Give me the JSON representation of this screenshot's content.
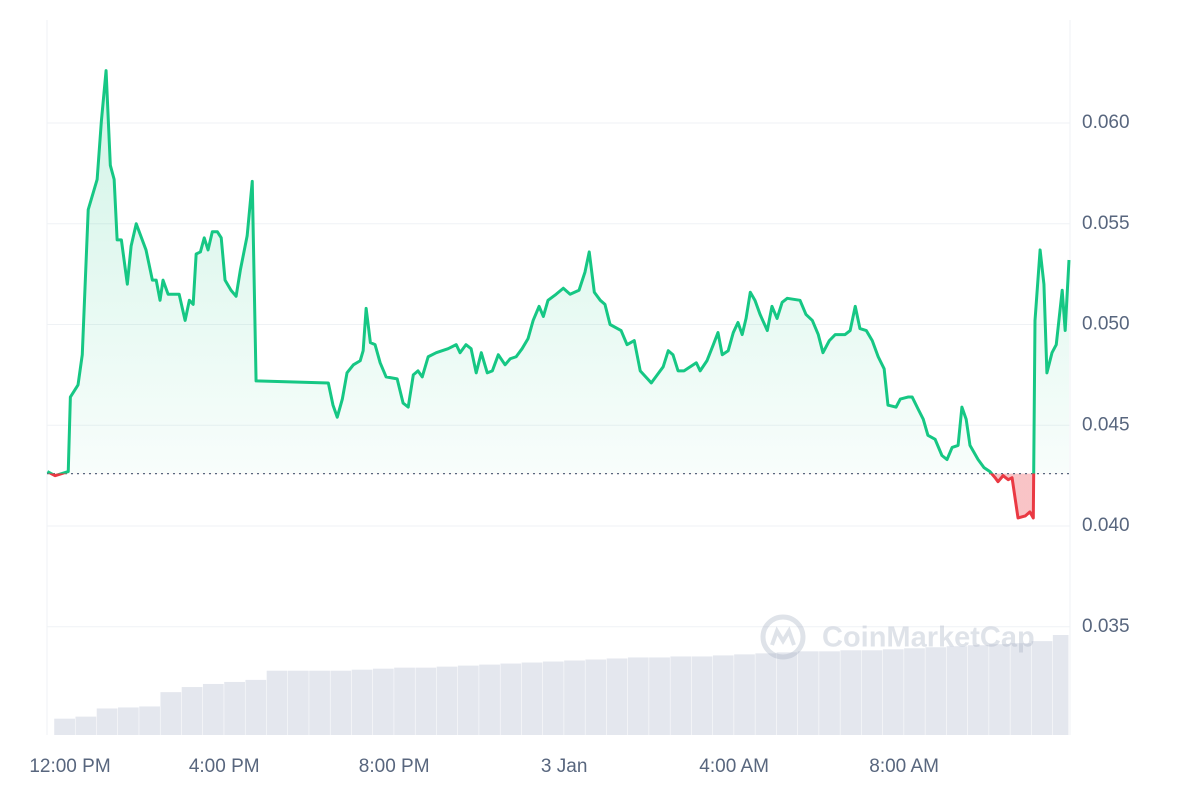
{
  "chart_data": {
    "type": "line",
    "x": [
      -0.16,
      0.02,
      0.33,
      0.38,
      0.56,
      0.66,
      0.8,
      1.01,
      1.11,
      1.22,
      1.32,
      1.41,
      1.48,
      1.58,
      1.72,
      1.81,
      1.93,
      2.16,
      2.31,
      2.4,
      2.49,
      2.56,
      2.68,
      2.94,
      3.08,
      3.18,
      3.27,
      3.34,
      3.44,
      3.53,
      3.62,
      3.72,
      3.84,
      3.93,
      4.02,
      4.16,
      4.28,
      4.38,
      4.54,
      4.66,
      4.75,
      6.45,
      6.56,
      6.66,
      6.78,
      6.89,
      7.04,
      7.2,
      7.27,
      7.34,
      7.44,
      7.55,
      7.67,
      7.81,
      8.07,
      8.21,
      8.33,
      8.45,
      8.56,
      8.66,
      8.8,
      8.99,
      9.27,
      9.46,
      9.55,
      9.69,
      9.81,
      9.93,
      10.05,
      10.19,
      10.31,
      10.45,
      10.61,
      10.73,
      10.87,
      11.01,
      11.15,
      11.27,
      11.41,
      11.51,
      11.62,
      11.81,
      11.98,
      12.14,
      12.35,
      12.49,
      12.59,
      12.71,
      12.85,
      12.96,
      13.08,
      13.34,
      13.48,
      13.65,
      13.79,
      14.05,
      14.19,
      14.33,
      14.45,
      14.56,
      14.68,
      14.82,
      15.11,
      15.2,
      15.36,
      15.51,
      15.62,
      15.72,
      15.86,
      15.98,
      16.09,
      16.19,
      16.28,
      16.38,
      16.49,
      16.61,
      16.78,
      16.89,
      17.01,
      17.13,
      17.25,
      17.55,
      17.69,
      17.84,
      17.98,
      18.09,
      18.24,
      18.38,
      18.61,
      18.73,
      18.85,
      18.96,
      19.11,
      19.25,
      19.39,
      19.53,
      19.62,
      19.81,
      19.91,
      20.09,
      20.19,
      20.33,
      20.45,
      20.56,
      20.73,
      20.89,
      21.01,
      21.13,
      21.27,
      21.36,
      21.46,
      21.55,
      21.74,
      21.88,
      22.02,
      22.14,
      22.21,
      22.33,
      22.45,
      22.54,
      22.68,
      22.85,
      22.96,
      23.04,
      23.08,
      23.2,
      23.29,
      23.36,
      23.48,
      23.58,
      23.72,
      23.79,
      23.88
    ],
    "values": [
      0.0427,
      0.0425,
      0.0427,
      0.0464,
      0.047,
      0.0485,
      0.0557,
      0.0572,
      0.0601,
      0.0626,
      0.0579,
      0.0572,
      0.0542,
      0.0542,
      0.052,
      0.0539,
      0.055,
      0.0537,
      0.0522,
      0.0522,
      0.0512,
      0.0522,
      0.0515,
      0.0515,
      0.0502,
      0.0512,
      0.051,
      0.0535,
      0.0536,
      0.0543,
      0.0537,
      0.0546,
      0.0546,
      0.0543,
      0.0522,
      0.0517,
      0.0514,
      0.0527,
      0.0544,
      0.0571,
      0.0472,
      0.0471,
      0.046,
      0.0454,
      0.0463,
      0.0476,
      0.048,
      0.0482,
      0.0487,
      0.0508,
      0.0491,
      0.049,
      0.0481,
      0.0474,
      0.0473,
      0.0461,
      0.0459,
      0.0475,
      0.0477,
      0.0474,
      0.0484,
      0.0486,
      0.0488,
      0.049,
      0.0486,
      0.049,
      0.0488,
      0.0476,
      0.0486,
      0.0476,
      0.0477,
      0.0485,
      0.048,
      0.0483,
      0.0484,
      0.0488,
      0.0493,
      0.0502,
      0.0509,
      0.0504,
      0.0512,
      0.0515,
      0.0518,
      0.0515,
      0.0517,
      0.0526,
      0.0536,
      0.0516,
      0.0512,
      0.051,
      0.05,
      0.0497,
      0.049,
      0.0492,
      0.0477,
      0.0471,
      0.0475,
      0.0479,
      0.0487,
      0.0485,
      0.0477,
      0.0477,
      0.0481,
      0.0477,
      0.0482,
      0.049,
      0.0496,
      0.0485,
      0.0487,
      0.0496,
      0.0501,
      0.0495,
      0.0503,
      0.0516,
      0.0512,
      0.0505,
      0.0497,
      0.0509,
      0.0503,
      0.0511,
      0.0513,
      0.0512,
      0.0505,
      0.0502,
      0.0495,
      0.0486,
      0.0492,
      0.0495,
      0.0495,
      0.0497,
      0.0509,
      0.0498,
      0.0497,
      0.0492,
      0.0484,
      0.0478,
      0.046,
      0.0459,
      0.0463,
      0.0464,
      0.0464,
      0.0458,
      0.0453,
      0.0445,
      0.0443,
      0.0435,
      0.0433,
      0.0439,
      0.044,
      0.0459,
      0.0453,
      0.044,
      0.0433,
      0.0429,
      0.0427,
      0.0424,
      0.0422,
      0.0425,
      0.0423,
      0.0424,
      0.0404,
      0.0405,
      0.0407,
      0.0404,
      0.0502,
      0.0537,
      0.052,
      0.0476,
      0.0486,
      0.049,
      0.0517,
      0.0497,
      0.0532
    ],
    "baseline": 0.0426,
    "colors": {
      "up": "#16c784",
      "down": "#ea3943",
      "volume": "#e4e7ee"
    },
    "volume": {
      "x": [
        0,
        0.5,
        1,
        1.5,
        2,
        2.5,
        3,
        3.5,
        4,
        4.5,
        5,
        5.5,
        6,
        6.5,
        7,
        7.5,
        8,
        8.5,
        9,
        9.5,
        10,
        10.5,
        11,
        11.5,
        12,
        12.5,
        13,
        13.5,
        14,
        14.5,
        15,
        15.5,
        16,
        16.5,
        17,
        17.5,
        18,
        18.5,
        19,
        19.5,
        20,
        20.5,
        21,
        21.5,
        22,
        22.5,
        23,
        23.5
      ],
      "values": [
        16,
        18,
        26,
        27,
        28,
        42,
        47,
        50,
        52,
        54,
        63,
        63,
        63,
        63,
        64,
        65,
        66,
        66,
        67,
        68,
        69,
        70,
        71,
        72,
        73,
        74,
        75,
        76,
        76,
        77,
        77,
        78,
        79,
        80,
        81,
        82,
        82,
        83,
        83,
        84,
        85,
        86,
        87,
        88,
        89,
        90,
        92,
        98
      ]
    },
    "xlim": [
      -0.17,
      23.88
    ],
    "xticks": [
      {
        "value": 0,
        "label": "12:00 PM"
      },
      {
        "value": 4,
        "label": "4:00 PM"
      },
      {
        "value": 8,
        "label": "8:00 PM"
      },
      {
        "value": 12,
        "label": "3 Jan"
      },
      {
        "value": 16,
        "label": "4:00 AM"
      },
      {
        "value": 20,
        "label": "8:00 AM"
      }
    ],
    "ylim": [
      0.02963,
      0.06511
    ],
    "yticks": [
      0.035,
      {
        "value": 0.04,
        "label": "0.040"
      },
      0.045,
      {
        "value": 0.05,
        "label": "0.050"
      },
      0.055,
      {
        "value": 0.06,
        "label": "0.060"
      }
    ],
    "grid": true,
    "watermark": "CoinMarketCap"
  }
}
